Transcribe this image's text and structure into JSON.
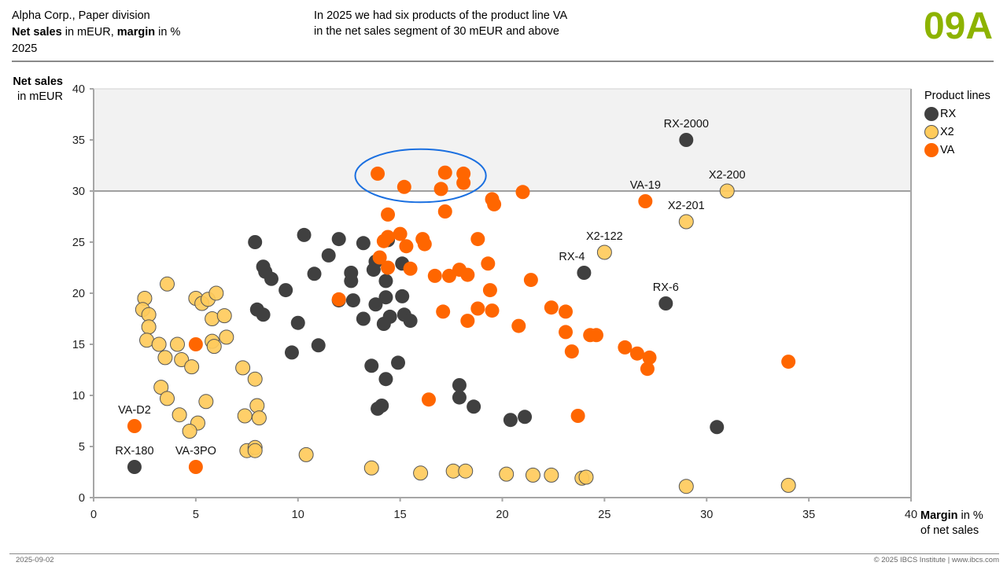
{
  "header": {
    "org": "Alpha Corp., Paper division",
    "measure_bold_1": "Net sales",
    "measure_mid": " in mEUR, ",
    "measure_bold_2": "margin",
    "measure_end": " in %",
    "period": "2025",
    "message_line1": "In 2025 we had six products of the product line VA",
    "message_line2": "in the net sales segment of 30 mEUR and above",
    "page_code": "09A",
    "page_code_color": "#8db300"
  },
  "footer": {
    "date": "2025-09-02",
    "copyright": "© 2025 IBCS Institute | www.ibcs.com"
  },
  "chart_data": {
    "type": "scatter",
    "title": "Net sales in mEUR, margin in %",
    "ylabel_bold": "Net sales",
    "ylabel_rest": "in mEUR",
    "xlabel_bold": "Margin",
    "xlabel_rest1": " in %",
    "xlabel_rest2": "of net sales",
    "xlim": [
      0,
      40
    ],
    "ylim": [
      0,
      40
    ],
    "xticks": [
      0,
      5,
      10,
      15,
      20,
      25,
      30,
      35,
      40
    ],
    "yticks": [
      0,
      5,
      10,
      15,
      20,
      25,
      30,
      35,
      40
    ],
    "highlight_band": {
      "y_from": 30,
      "y_to": 40,
      "color": "#f2f2f2"
    },
    "highlight_ellipse": {
      "cx": 16,
      "cy": 31.5,
      "rx": 3.2,
      "ry": 2.6,
      "color": "#1a6fe0"
    },
    "grid": false,
    "legend": {
      "title": "Product lines",
      "position": "right"
    },
    "series": [
      {
        "name": "RX",
        "color": "#404040",
        "stroke": "none",
        "points": [
          [
            29.0,
            35.0,
            "RX-2000"
          ],
          [
            24.0,
            22.0,
            "RX-4"
          ],
          [
            28.0,
            19.0,
            "RX-6"
          ],
          [
            2.0,
            3.0,
            "RX-180"
          ],
          [
            30.5,
            6.9,
            ""
          ],
          [
            7.9,
            25.0,
            ""
          ],
          [
            10.3,
            25.7,
            ""
          ],
          [
            12.0,
            25.3,
            ""
          ],
          [
            13.2,
            24.9,
            ""
          ],
          [
            14.4,
            25.2,
            ""
          ],
          [
            11.5,
            23.7,
            ""
          ],
          [
            8.3,
            22.6,
            ""
          ],
          [
            8.4,
            22.1,
            ""
          ],
          [
            8.7,
            21.4,
            ""
          ],
          [
            10.8,
            21.9,
            ""
          ],
          [
            12.6,
            22.0,
            ""
          ],
          [
            12.6,
            21.2,
            ""
          ],
          [
            13.8,
            23.1,
            ""
          ],
          [
            13.7,
            22.3,
            ""
          ],
          [
            15.1,
            22.9,
            ""
          ],
          [
            14.3,
            21.2,
            ""
          ],
          [
            9.4,
            20.3,
            ""
          ],
          [
            8.0,
            18.4,
            ""
          ],
          [
            8.3,
            17.9,
            ""
          ],
          [
            12.0,
            19.3,
            ""
          ],
          [
            12.7,
            19.3,
            ""
          ],
          [
            13.8,
            18.9,
            ""
          ],
          [
            14.3,
            19.6,
            ""
          ],
          [
            15.1,
            19.7,
            ""
          ],
          [
            10.0,
            17.1,
            ""
          ],
          [
            13.2,
            17.5,
            ""
          ],
          [
            14.2,
            17.0,
            ""
          ],
          [
            14.5,
            17.7,
            ""
          ],
          [
            15.2,
            17.9,
            ""
          ],
          [
            15.5,
            17.3,
            ""
          ],
          [
            9.7,
            14.2,
            ""
          ],
          [
            11.0,
            14.9,
            ""
          ],
          [
            13.6,
            12.9,
            ""
          ],
          [
            14.9,
            13.2,
            ""
          ],
          [
            14.3,
            11.6,
            ""
          ],
          [
            17.9,
            11.0,
            ""
          ],
          [
            17.9,
            9.8,
            ""
          ],
          [
            18.6,
            8.9,
            ""
          ],
          [
            13.9,
            8.7,
            ""
          ],
          [
            14.1,
            9.0,
            ""
          ],
          [
            20.4,
            7.6,
            ""
          ],
          [
            21.1,
            7.9,
            ""
          ]
        ]
      },
      {
        "name": "X2",
        "color": "#ffcb5c",
        "stroke": "#555555",
        "points": [
          [
            31.0,
            30.0,
            "X2-200"
          ],
          [
            29.0,
            27.0,
            "X2-201"
          ],
          [
            25.0,
            24.0,
            "X2-122"
          ],
          [
            3.6,
            20.9,
            ""
          ],
          [
            2.5,
            19.5,
            ""
          ],
          [
            2.4,
            18.4,
            ""
          ],
          [
            2.7,
            17.9,
            ""
          ],
          [
            2.7,
            16.7,
            ""
          ],
          [
            2.6,
            15.4,
            ""
          ],
          [
            3.2,
            15.0,
            ""
          ],
          [
            3.5,
            13.7,
            ""
          ],
          [
            4.1,
            15.0,
            ""
          ],
          [
            4.3,
            13.5,
            ""
          ],
          [
            4.8,
            12.8,
            ""
          ],
          [
            5.0,
            19.5,
            ""
          ],
          [
            5.3,
            19.0,
            ""
          ],
          [
            5.6,
            19.4,
            ""
          ],
          [
            6.0,
            20.0,
            ""
          ],
          [
            5.8,
            17.5,
            ""
          ],
          [
            6.4,
            17.8,
            ""
          ],
          [
            6.5,
            15.7,
            ""
          ],
          [
            5.8,
            15.3,
            ""
          ],
          [
            5.9,
            14.8,
            ""
          ],
          [
            3.3,
            10.8,
            ""
          ],
          [
            3.6,
            9.7,
            ""
          ],
          [
            4.2,
            8.1,
            ""
          ],
          [
            5.5,
            9.4,
            ""
          ],
          [
            5.1,
            7.3,
            ""
          ],
          [
            4.7,
            6.5,
            ""
          ],
          [
            7.3,
            12.7,
            ""
          ],
          [
            7.9,
            11.6,
            ""
          ],
          [
            8.0,
            9.0,
            ""
          ],
          [
            7.4,
            8.0,
            ""
          ],
          [
            8.1,
            7.8,
            ""
          ],
          [
            7.5,
            4.6,
            ""
          ],
          [
            7.9,
            4.9,
            ""
          ],
          [
            7.9,
            4.6,
            ""
          ],
          [
            10.4,
            4.2,
            ""
          ],
          [
            13.6,
            2.9,
            ""
          ],
          [
            16.0,
            2.4,
            ""
          ],
          [
            17.6,
            2.6,
            ""
          ],
          [
            18.2,
            2.6,
            ""
          ],
          [
            20.2,
            2.3,
            ""
          ],
          [
            21.5,
            2.2,
            ""
          ],
          [
            22.4,
            2.2,
            ""
          ],
          [
            23.9,
            1.9,
            ""
          ],
          [
            24.1,
            2.0,
            ""
          ],
          [
            29.0,
            1.1,
            ""
          ],
          [
            34.0,
            1.2,
            ""
          ]
        ]
      },
      {
        "name": "VA",
        "color": "#ff6600",
        "stroke": "none",
        "points": [
          [
            27.0,
            29.0,
            "VA-19"
          ],
          [
            2.0,
            7.0,
            "VA-D2"
          ],
          [
            5.0,
            3.0,
            "VA-3PO"
          ],
          [
            13.9,
            31.7,
            ""
          ],
          [
            15.2,
            30.4,
            ""
          ],
          [
            17.2,
            31.8,
            ""
          ],
          [
            17.0,
            30.2,
            ""
          ],
          [
            18.1,
            31.7,
            ""
          ],
          [
            18.1,
            30.8,
            ""
          ],
          [
            21.0,
            29.9,
            ""
          ],
          [
            19.5,
            29.2,
            ""
          ],
          [
            19.6,
            28.7,
            ""
          ],
          [
            17.2,
            28.0,
            ""
          ],
          [
            14.4,
            27.7,
            ""
          ],
          [
            18.8,
            25.3,
            ""
          ],
          [
            14.4,
            25.5,
            ""
          ],
          [
            14.2,
            25.1,
            ""
          ],
          [
            15.0,
            25.8,
            ""
          ],
          [
            15.3,
            24.6,
            ""
          ],
          [
            16.1,
            25.3,
            ""
          ],
          [
            16.2,
            24.8,
            ""
          ],
          [
            14.0,
            23.5,
            ""
          ],
          [
            14.4,
            22.5,
            ""
          ],
          [
            15.5,
            22.4,
            ""
          ],
          [
            19.3,
            22.9,
            ""
          ],
          [
            16.7,
            21.7,
            ""
          ],
          [
            17.4,
            21.7,
            ""
          ],
          [
            17.9,
            22.3,
            ""
          ],
          [
            18.3,
            21.8,
            ""
          ],
          [
            21.4,
            21.3,
            ""
          ],
          [
            12.0,
            19.4,
            ""
          ],
          [
            19.4,
            20.3,
            ""
          ],
          [
            18.8,
            18.5,
            ""
          ],
          [
            19.5,
            18.3,
            ""
          ],
          [
            17.1,
            18.2,
            ""
          ],
          [
            18.3,
            17.3,
            ""
          ],
          [
            20.8,
            16.8,
            ""
          ],
          [
            22.4,
            18.6,
            ""
          ],
          [
            23.1,
            18.2,
            ""
          ],
          [
            23.1,
            16.2,
            ""
          ],
          [
            24.3,
            15.9,
            ""
          ],
          [
            24.6,
            15.9,
            ""
          ],
          [
            23.4,
            14.3,
            ""
          ],
          [
            26.0,
            14.7,
            ""
          ],
          [
            26.6,
            14.1,
            ""
          ],
          [
            27.2,
            13.7,
            ""
          ],
          [
            27.1,
            12.6,
            ""
          ],
          [
            34.0,
            13.3,
            ""
          ],
          [
            5.0,
            15.0,
            ""
          ],
          [
            16.4,
            9.6,
            ""
          ],
          [
            23.7,
            8.0,
            ""
          ]
        ]
      }
    ]
  }
}
